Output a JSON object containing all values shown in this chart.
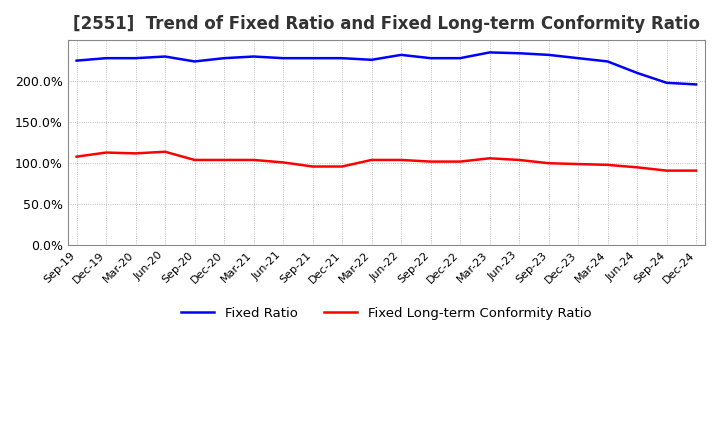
{
  "title": "[2551]  Trend of Fixed Ratio and Fixed Long-term Conformity Ratio",
  "title_fontsize": 12,
  "x_labels": [
    "Sep-19",
    "Dec-19",
    "Mar-20",
    "Jun-20",
    "Sep-20",
    "Dec-20",
    "Mar-21",
    "Jun-21",
    "Sep-21",
    "Dec-21",
    "Mar-22",
    "Jun-22",
    "Sep-22",
    "Dec-22",
    "Mar-23",
    "Jun-23",
    "Sep-23",
    "Dec-23",
    "Mar-24",
    "Jun-24",
    "Sep-24",
    "Dec-24"
  ],
  "fixed_ratio": [
    225,
    228,
    228,
    230,
    224,
    228,
    230,
    228,
    228,
    228,
    226,
    232,
    228,
    228,
    235,
    234,
    232,
    228,
    224,
    210,
    198,
    196
  ],
  "fixed_lt_ratio": [
    108,
    113,
    112,
    114,
    104,
    104,
    104,
    101,
    96,
    96,
    104,
    104,
    102,
    102,
    106,
    104,
    100,
    99,
    98,
    95,
    91,
    91
  ],
  "fixed_ratio_color": "#0000FF",
  "fixed_lt_ratio_color": "#FF0000",
  "ylabel_ticks": [
    0,
    50,
    100,
    150,
    200
  ],
  "ylim": [
    0,
    250
  ],
  "grid_color": "#AAAAAA",
  "background_color": "#FFFFFF",
  "legend_fixed_ratio": "Fixed Ratio",
  "legend_fixed_lt_ratio": "Fixed Long-term Conformity Ratio"
}
